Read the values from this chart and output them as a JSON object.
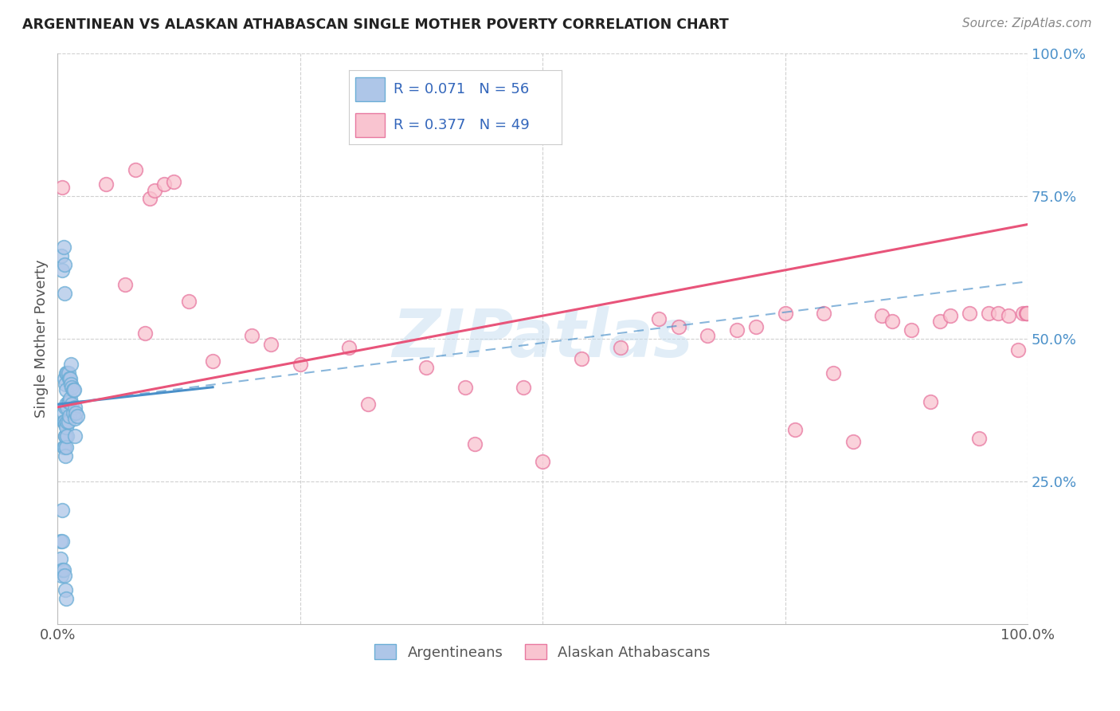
{
  "title": "ARGENTINEAN VS ALASKAN ATHABASCAN SINGLE MOTHER POVERTY CORRELATION CHART",
  "source": "Source: ZipAtlas.com",
  "ylabel": "Single Mother Poverty",
  "xlim": [
    0,
    1
  ],
  "ylim": [
    0,
    1
  ],
  "color_blue_face": "#aec6e8",
  "color_blue_edge": "#6baed6",
  "color_pink_face": "#f9c4d0",
  "color_pink_edge": "#e878a0",
  "color_blue_line": "#4a90c9",
  "color_pink_line": "#e8547a",
  "watermark_color": "#c5ddf0",
  "grid_color": "#d0d0d0",
  "right_tick_color": "#4a90c9",
  "argentineans_x": [
    0.004,
    0.005,
    0.006,
    0.006,
    0.006,
    0.006,
    0.007,
    0.007,
    0.007,
    0.007,
    0.007,
    0.008,
    0.008,
    0.008,
    0.008,
    0.008,
    0.008,
    0.009,
    0.009,
    0.009,
    0.009,
    0.009,
    0.01,
    0.01,
    0.01,
    0.01,
    0.011,
    0.011,
    0.011,
    0.012,
    0.012,
    0.012,
    0.013,
    0.013,
    0.014,
    0.014,
    0.015,
    0.015,
    0.016,
    0.016,
    0.017,
    0.018,
    0.018,
    0.018,
    0.019,
    0.02,
    0.003,
    0.003,
    0.004,
    0.005,
    0.005,
    0.005,
    0.006,
    0.007,
    0.008,
    0.009
  ],
  "argentineans_y": [
    0.645,
    0.62,
    0.66,
    0.37,
    0.355,
    0.31,
    0.63,
    0.58,
    0.43,
    0.355,
    0.31,
    0.42,
    0.38,
    0.35,
    0.33,
    0.295,
    0.33,
    0.44,
    0.41,
    0.385,
    0.345,
    0.31,
    0.44,
    0.38,
    0.355,
    0.33,
    0.44,
    0.39,
    0.355,
    0.43,
    0.39,
    0.365,
    0.43,
    0.395,
    0.455,
    0.42,
    0.415,
    0.385,
    0.41,
    0.37,
    0.41,
    0.38,
    0.36,
    0.33,
    0.37,
    0.365,
    0.145,
    0.115,
    0.085,
    0.2,
    0.145,
    0.095,
    0.095,
    0.085,
    0.06,
    0.045
  ],
  "athabascan_x": [
    0.005,
    0.05,
    0.07,
    0.08,
    0.09,
    0.095,
    0.1,
    0.11,
    0.12,
    0.135,
    0.16,
    0.2,
    0.22,
    0.25,
    0.3,
    0.32,
    0.38,
    0.42,
    0.43,
    0.48,
    0.5,
    0.54,
    0.58,
    0.62,
    0.64,
    0.67,
    0.7,
    0.72,
    0.75,
    0.76,
    0.79,
    0.8,
    0.82,
    0.85,
    0.86,
    0.88,
    0.9,
    0.91,
    0.92,
    0.94,
    0.95,
    0.96,
    0.97,
    0.98,
    0.99,
    0.995,
    0.998,
    0.999,
    0.999
  ],
  "athabascan_y": [
    0.765,
    0.77,
    0.595,
    0.795,
    0.51,
    0.745,
    0.76,
    0.77,
    0.775,
    0.565,
    0.46,
    0.505,
    0.49,
    0.455,
    0.485,
    0.385,
    0.45,
    0.415,
    0.315,
    0.415,
    0.285,
    0.465,
    0.485,
    0.535,
    0.52,
    0.505,
    0.515,
    0.52,
    0.545,
    0.34,
    0.545,
    0.44,
    0.32,
    0.54,
    0.53,
    0.515,
    0.39,
    0.53,
    0.54,
    0.545,
    0.325,
    0.545,
    0.545,
    0.54,
    0.48,
    0.545,
    0.545,
    0.545,
    0.545
  ],
  "blue_line": [
    [
      0.0,
      0.16
    ],
    [
      0.385,
      0.415
    ]
  ],
  "pink_line": [
    [
      0.0,
      1.0
    ],
    [
      0.38,
      0.7
    ]
  ],
  "blue_dashed_line": [
    [
      0.0,
      1.0
    ],
    [
      0.385,
      0.6
    ]
  ]
}
